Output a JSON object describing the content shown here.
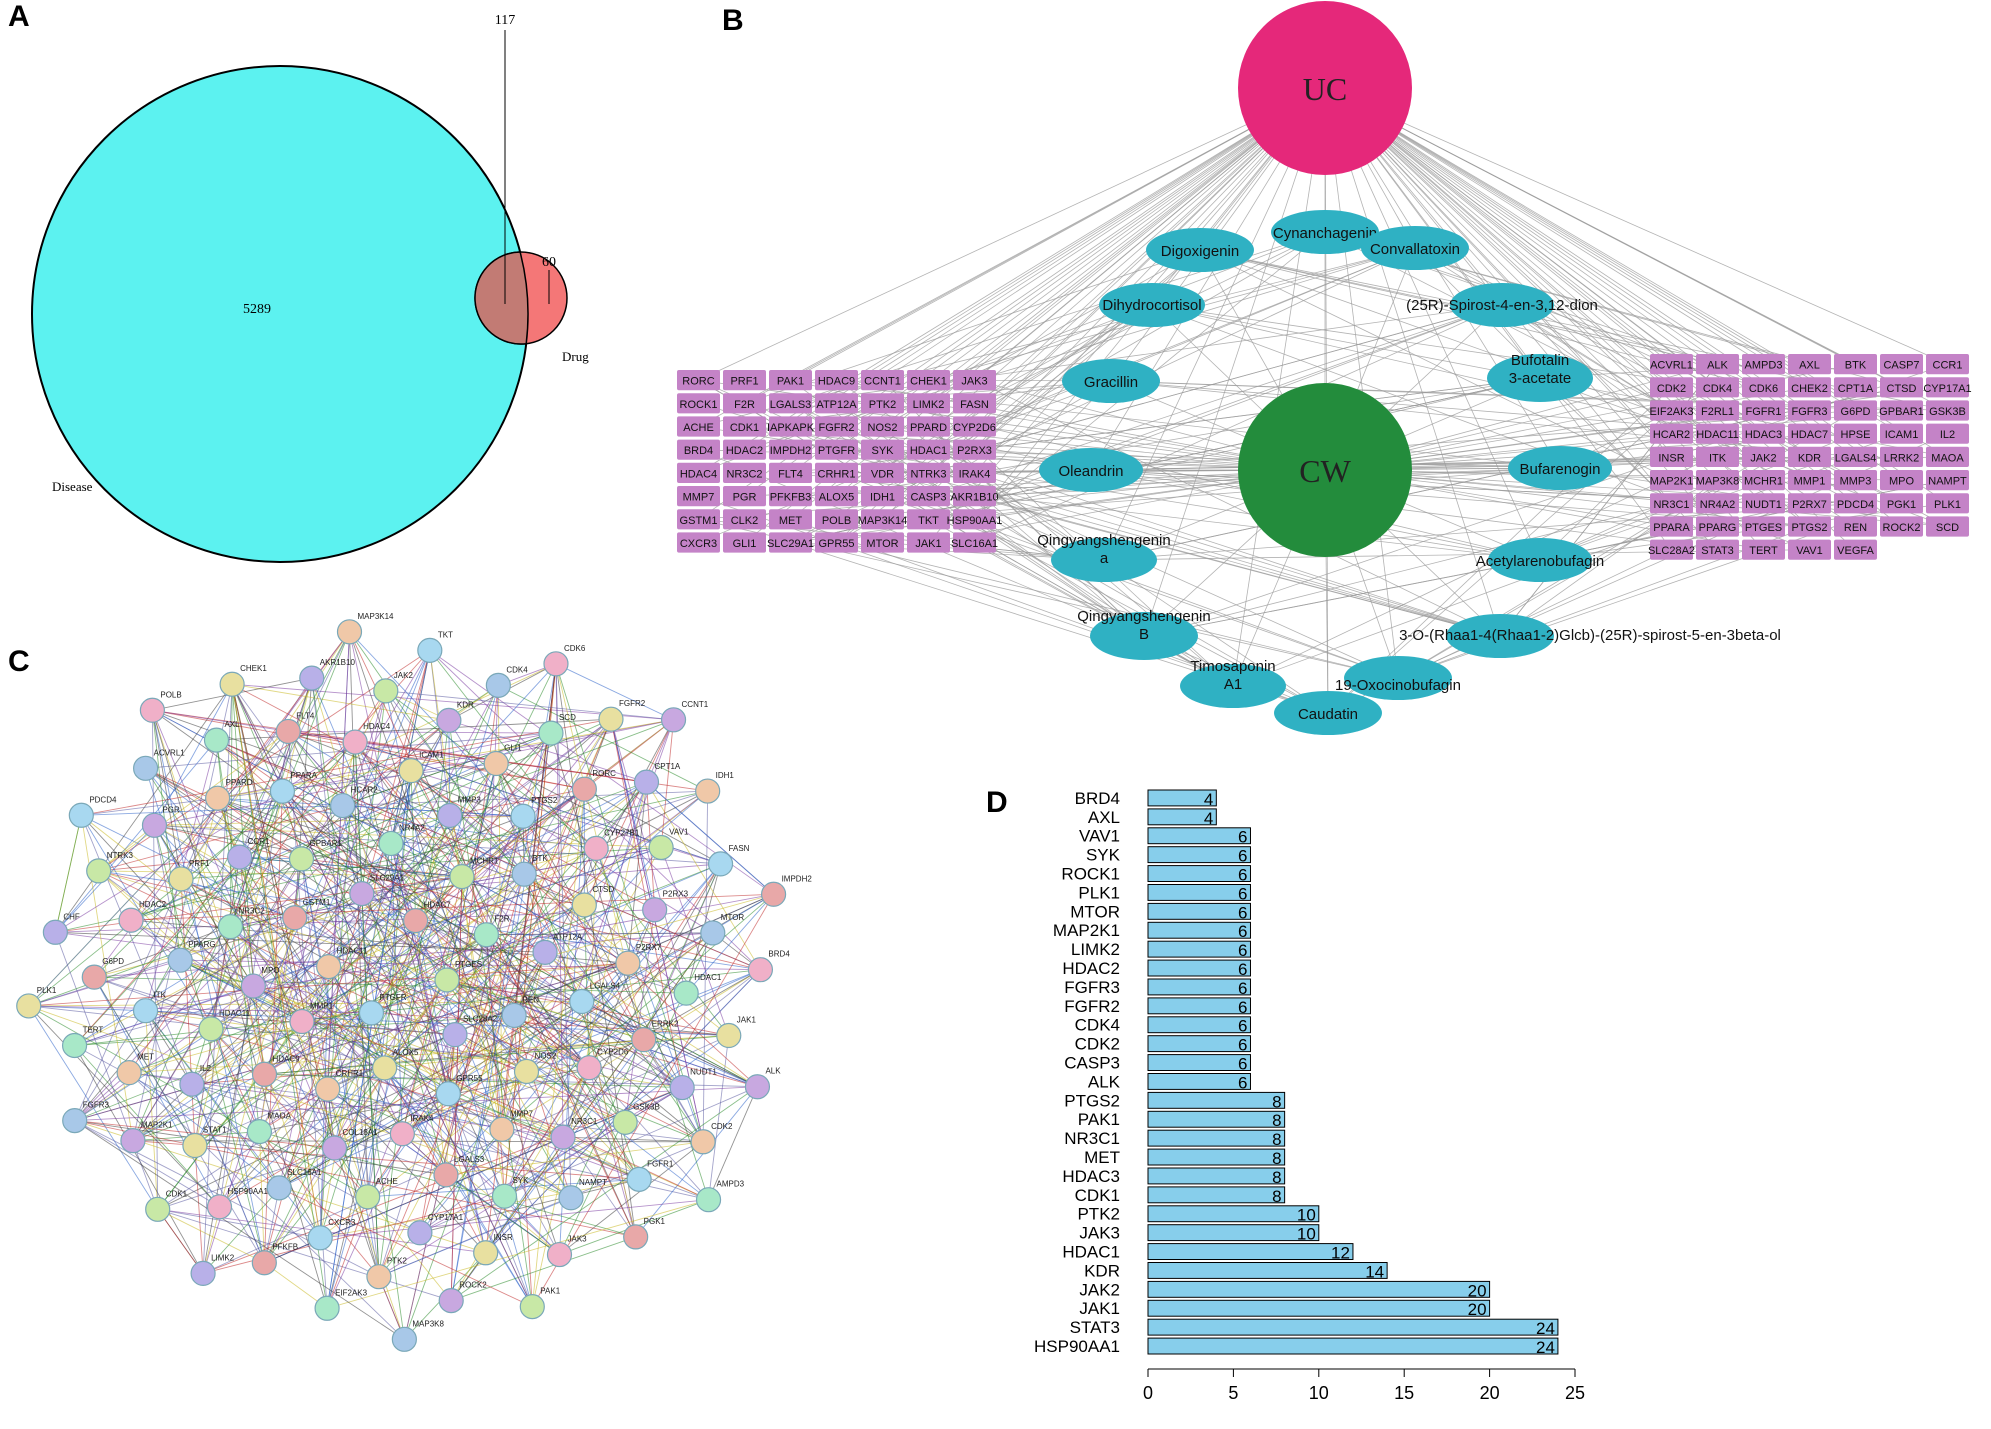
{
  "panels": {
    "a": "A",
    "b": "B",
    "c": "C",
    "d": "D"
  },
  "venn": {
    "disease_label": "Disease",
    "drug_label": "Drug",
    "disease_only": "5289",
    "drug_only": "60",
    "overlap": "117",
    "colors": {
      "disease": "#5cf2f0",
      "drug": "#f47777",
      "overlap": "#c27b74"
    }
  },
  "network": {
    "hub_uc": "UC",
    "hub_cw": "CW",
    "colors": {
      "uc": "#e5287a",
      "cw": "#238c3c",
      "compound": "#2fb1c3",
      "target": "#c483c7",
      "edge": "#9a9a9a"
    },
    "compounds": [
      "Cynanchagenin",
      "Digoxigenin",
      "Convallatoxin",
      "Dihydrocortisol",
      "(25R)-Spirost-4-en-3,12-dion",
      "Gracillin",
      "Bufotalin 3-acetate",
      "Oleandrin",
      "Bufarenogin",
      "Qingyangshengenin a",
      "Acetylarenobufagin",
      "Qingyangshengenin B",
      "3-O-(Rhaa1-4(Rhaa1-2)Glcb)-(25R)-spirost-5-en-3beta-ol",
      "Timosaponin A1",
      "19-Oxocinobufagin",
      "Caudatin"
    ],
    "targets_left": [
      [
        "RORC",
        "PRF1",
        "PAK1",
        "HDAC9",
        "CCNT1",
        "CHEK1",
        "JAK3"
      ],
      [
        "ROCK1",
        "F2R",
        "LGALS3",
        "ATP12A",
        "PTK2",
        "LIMK2",
        "FASN"
      ],
      [
        "ACHE",
        "CDK1",
        "IAPKAPK",
        "FGFR2",
        "NOS2",
        "PPARD",
        "CYP2D6"
      ],
      [
        "BRD4",
        "HDAC2",
        "IMPDH2",
        "PTGFR",
        "SYK",
        "HDAC1",
        "P2RX3"
      ],
      [
        "HDAC4",
        "NR3C2",
        "FLT4",
        "CRHR1",
        "VDR",
        "NTRK3",
        "IRAK4"
      ],
      [
        "MMP7",
        "PGR",
        "PFKFB3",
        "ALOX5",
        "IDH1",
        "CASP3",
        "AKR1B10"
      ],
      [
        "GSTM1",
        "CLK2",
        "MET",
        "POLB",
        "MAP3K14",
        "TKT",
        "HSP90AA1"
      ],
      [
        "CXCR3",
        "GLI1",
        "SLC29A1",
        "GPR55",
        "MTOR",
        "JAK1",
        "SLC16A1"
      ]
    ],
    "targets_right": [
      [
        "ACVRL1",
        "ALK",
        "AMPD3",
        "AXL",
        "BTK",
        "CASP7",
        "CCR1"
      ],
      [
        "CDK2",
        "CDK4",
        "CDK6",
        "CHEK2",
        "CPT1A",
        "CTSD",
        "CYP17A1"
      ],
      [
        "EIF2AK3",
        "F2RL1",
        "FGFR1",
        "FGFR3",
        "G6PD",
        "GPBAR1",
        "GSK3B"
      ],
      [
        "HCAR2",
        "HDAC11",
        "HDAC3",
        "HDAC7",
        "HPSE",
        "ICAM1",
        "IL2"
      ],
      [
        "INSR",
        "ITK",
        "JAK2",
        "KDR",
        "LGALS4",
        "LRRK2",
        "MAOA"
      ],
      [
        "MAP2K1",
        "MAP3K8",
        "MCHR1",
        "MMP1",
        "MMP3",
        "MPO",
        "NAMPT"
      ],
      [
        "NR3C1",
        "NR4A2",
        "NUDT1",
        "P2RX7",
        "PDCD4",
        "PGK1",
        "PLK1"
      ],
      [
        "PPARA",
        "PPARG",
        "PTGES",
        "PTGS2",
        "REN",
        "ROCK2",
        "SCD"
      ],
      [
        "SLC28A2",
        "STAT3",
        "TERT",
        "VAV1",
        "VEGFA"
      ]
    ]
  },
  "ppi": {
    "nodes": [
      "PTGES",
      "PTGFR",
      "HDAC7",
      "SLC28A2",
      "HDAC11",
      "F2R",
      "ALOX5",
      "SLC29A1",
      "REN",
      "MMP1",
      "MCHR1",
      "GPR55",
      "GSTM1",
      "ATP12A",
      "CRHR1",
      "NR4A2",
      "NOS2",
      "MPO",
      "BTK",
      "IRAK4",
      "GPBAR1",
      "LGALS4",
      "HDAC9",
      "MMP3",
      "MMP7",
      "NR3C2",
      "CTSD",
      "COL18A1",
      "HCAR2",
      "CYP2D6",
      "HDAC11",
      "PTGS2",
      "LGALS3",
      "CCR1",
      "P2RX7",
      "MAOA",
      "ICAM1",
      "NR3C1",
      "PPARG",
      "CYP27B1",
      "ACHE",
      "PPARA",
      "ERRK2",
      "IL2",
      "GLI1",
      "SYK",
      "PRF1",
      "P2RX3",
      "SLC16A1",
      "HDAC4",
      "GSK3B",
      "ITK",
      "RORC",
      "CYP17A1",
      "PPARD",
      "HDAC1",
      "STAT1",
      "KDR",
      "NAMPT",
      "HDAC2",
      "VAV1",
      "CXCR3",
      "FLT4",
      "NUDT1",
      "MET",
      "SCD",
      "INSR",
      "PGR",
      "MTOR",
      "HSP90AA1",
      "JAK2",
      "FGFR1",
      "G6PD",
      "CPT1A",
      "PTK2",
      "AXL",
      "JAK1",
      "MAP2K1",
      "CDK4",
      "JAK3",
      "NTRK3",
      "FASN",
      "PFKFB",
      "AKR1B10",
      "CDK2",
      "TERT",
      "FGFR2",
      "ROCK2",
      "ACVRL1",
      "BRD4",
      "CDK1",
      "TKT",
      "PGK1",
      "CHF",
      "IDH1",
      "EIF2AK3",
      "CHEK1",
      "ALK",
      "FGFR3",
      "CDK6",
      "PAK1",
      "PDCD4",
      "IMPDH2",
      "LIMK2",
      "MAP3K14",
      "AMPD3",
      "PLK1",
      "CCNT1",
      "MAP3K8",
      "POLB"
    ],
    "node_colors": [
      "#c8e8a6",
      "#a8d8f0",
      "#e8a8a8",
      "#b8b0e8",
      "#f0c8a8",
      "#a8e8c8",
      "#e8e0a0",
      "#c8a8e0",
      "#a8c8e8",
      "#f0b0c8"
    ]
  },
  "chart_data": {
    "type": "bar",
    "orientation": "horizontal",
    "categories": [
      "BRD4",
      "AXL",
      "VAV1",
      "SYK",
      "ROCK1",
      "PLK1",
      "MTOR",
      "MAP2K1",
      "LIMK2",
      "HDAC2",
      "FGFR3",
      "FGFR2",
      "CDK4",
      "CDK2",
      "CASP3",
      "ALK",
      "PTGS2",
      "PAK1",
      "NR3C1",
      "MET",
      "HDAC3",
      "CDK1",
      "PTK2",
      "JAK3",
      "HDAC1",
      "KDR",
      "JAK2",
      "JAK1",
      "STAT3",
      "HSP90AA1"
    ],
    "values": [
      4,
      4,
      6,
      6,
      6,
      6,
      6,
      6,
      6,
      6,
      6,
      6,
      6,
      6,
      6,
      6,
      8,
      8,
      8,
      8,
      8,
      8,
      10,
      10,
      12,
      14,
      20,
      20,
      24,
      24
    ],
    "xlim": [
      0,
      25
    ],
    "xticks": [
      0,
      5,
      10,
      15,
      20,
      25
    ],
    "bar_color": "#87ceeb",
    "xlabel": "",
    "ylabel": "",
    "title": ""
  }
}
